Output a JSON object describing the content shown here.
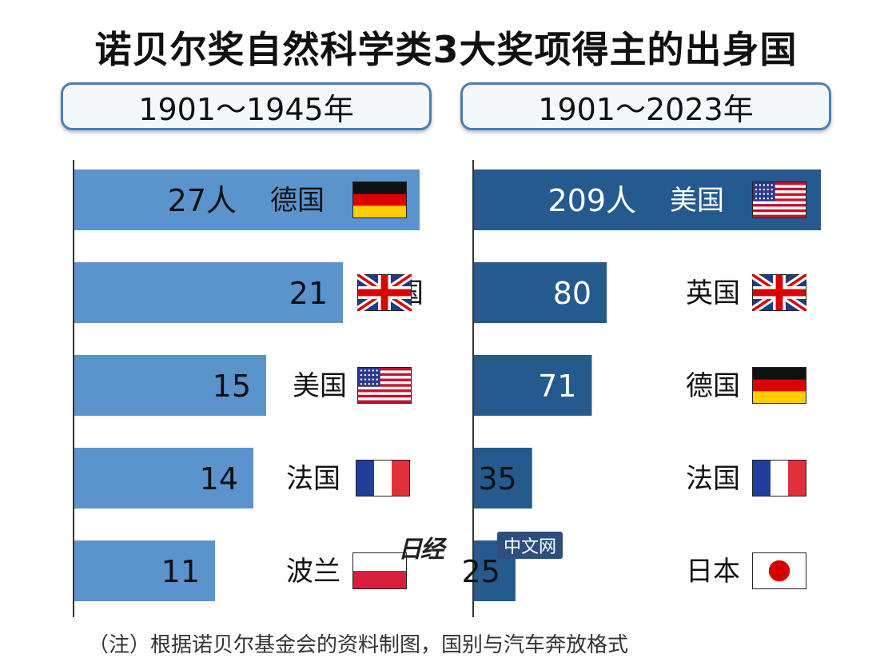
{
  "title": "诺贝尔奖自然科学类3大奖项得主的出身国",
  "watermark": {
    "logo": "日经",
    "tag": "中文网"
  },
  "note": "（注）根据诺贝尔基金会的资料制图，国别与汽车奔放格式",
  "colors": {
    "left_bar": "#5b93cc",
    "right_bar": "#245a8e",
    "axis": "#333333"
  },
  "chart_data": [
    {
      "type": "bar",
      "orientation": "horizontal",
      "period_label": "1901～1945年",
      "categories": [
        "德国",
        "英国",
        "美国",
        "法国",
        "波兰"
      ],
      "values": [
        27,
        21,
        15,
        14,
        11
      ],
      "value_labels": [
        "27人",
        "21",
        "15",
        "14",
        "11"
      ],
      "flags": [
        "germany-flag",
        "uk-flag",
        "usa-flag",
        "france-flag",
        "poland-flag"
      ],
      "xlim": [
        0,
        27
      ]
    },
    {
      "type": "bar",
      "orientation": "horizontal",
      "period_label": "1901～2023年",
      "categories": [
        "美国",
        "英国",
        "德国",
        "法国",
        "日本"
      ],
      "values": [
        209,
        80,
        71,
        35,
        25
      ],
      "value_labels": [
        "209人",
        "80",
        "71",
        "35",
        "25"
      ],
      "flags": [
        "usa-flag",
        "uk-flag",
        "germany-flag",
        "france-flag",
        "japan-flag"
      ],
      "xlim": [
        0,
        209
      ]
    }
  ]
}
